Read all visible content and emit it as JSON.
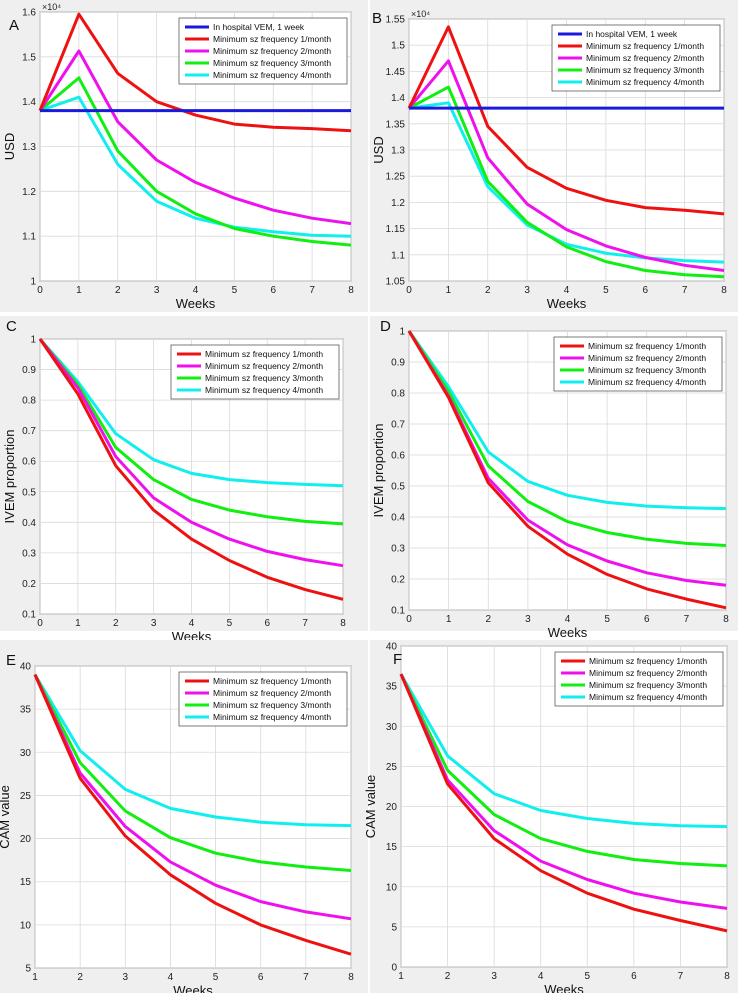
{
  "chart_data": [
    {
      "id": "A",
      "letter": "A",
      "type": "line",
      "ylabel": "USD",
      "xlabel": "Weeks",
      "xlim": [
        0,
        8
      ],
      "ylim": [
        1.0,
        1.6
      ],
      "xticks": [
        0,
        1,
        2,
        3,
        4,
        5,
        6,
        7,
        8
      ],
      "yticks": [
        1,
        1.1,
        1.2,
        1.3,
        1.4,
        1.5,
        1.6
      ],
      "ytick_labels": [
        "1",
        "1.1",
        "1.2",
        "1.3",
        "1.4",
        "1.5",
        "1.6"
      ],
      "exponent_label": "×10⁴",
      "legend_position": "top-right",
      "x": [
        0,
        1,
        2,
        3,
        4,
        5,
        6,
        7,
        8
      ],
      "series": [
        {
          "name": "In hospital VEM, 1 week",
          "color": "#1a1adc",
          "values": [
            1.38,
            1.38,
            1.38,
            1.38,
            1.38,
            1.38,
            1.38,
            1.38,
            1.38
          ]
        },
        {
          "name": "Minimum sz frequency 1/month",
          "color": "#ee1111",
          "values": [
            1.38,
            1.595,
            1.463,
            1.4,
            1.37,
            1.35,
            1.343,
            1.34,
            1.335
          ]
        },
        {
          "name": "Minimum sz frequency 2/month",
          "color": "#ee11ee",
          "values": [
            1.38,
            1.513,
            1.355,
            1.27,
            1.22,
            1.185,
            1.158,
            1.14,
            1.128
          ]
        },
        {
          "name": "Minimum sz frequency 3/month",
          "color": "#11ee11",
          "values": [
            1.38,
            1.453,
            1.29,
            1.2,
            1.15,
            1.117,
            1.1,
            1.088,
            1.08
          ]
        },
        {
          "name": "Minimum sz frequency 4/month",
          "color": "#11eeee",
          "values": [
            1.38,
            1.41,
            1.26,
            1.178,
            1.14,
            1.12,
            1.11,
            1.102,
            1.1
          ]
        }
      ]
    },
    {
      "id": "B",
      "letter": "B",
      "type": "line",
      "ylabel": "USD",
      "xlabel": "Weeks",
      "xlim": [
        0,
        8
      ],
      "ylim": [
        1.05,
        1.55
      ],
      "xticks": [
        0,
        1,
        2,
        3,
        4,
        5,
        6,
        7,
        8
      ],
      "yticks": [
        1.05,
        1.1,
        1.15,
        1.2,
        1.25,
        1.3,
        1.35,
        1.4,
        1.45,
        1.5,
        1.55
      ],
      "ytick_labels": [
        "1.05",
        "1.1",
        "1.15",
        "1.2",
        "1.25",
        "1.3",
        "1.35",
        "1.4",
        "1.45",
        "1.5",
        "1.55"
      ],
      "exponent_label": "×10⁴",
      "legend_position": "top-right",
      "x": [
        0,
        1,
        2,
        3,
        4,
        5,
        6,
        7,
        8
      ],
      "series": [
        {
          "name": "In hospital VEM, 1 week",
          "color": "#1a1adc",
          "values": [
            1.38,
            1.38,
            1.38,
            1.38,
            1.38,
            1.38,
            1.38,
            1.38,
            1.38
          ]
        },
        {
          "name": "Minimum sz frequency 1/month",
          "color": "#ee1111",
          "values": [
            1.38,
            1.535,
            1.345,
            1.267,
            1.227,
            1.204,
            1.19,
            1.185,
            1.178
          ]
        },
        {
          "name": "Minimum sz frequency 2/month",
          "color": "#ee11ee",
          "values": [
            1.38,
            1.47,
            1.285,
            1.197,
            1.148,
            1.117,
            1.095,
            1.08,
            1.07
          ]
        },
        {
          "name": "Minimum sz frequency 3/month",
          "color": "#11ee11",
          "values": [
            1.38,
            1.42,
            1.24,
            1.162,
            1.115,
            1.087,
            1.07,
            1.062,
            1.058
          ]
        },
        {
          "name": "Minimum sz frequency 4/month",
          "color": "#11eeee",
          "values": [
            1.38,
            1.39,
            1.23,
            1.157,
            1.12,
            1.103,
            1.094,
            1.089,
            1.086
          ]
        }
      ]
    },
    {
      "id": "C",
      "letter": "C",
      "type": "line",
      "ylabel": "IVEM proportion",
      "xlabel": "Weeks",
      "xlim": [
        0,
        8
      ],
      "ylim": [
        0.1,
        1.0
      ],
      "xticks": [
        0,
        1,
        2,
        3,
        4,
        5,
        6,
        7,
        8
      ],
      "yticks": [
        0.1,
        0.2,
        0.3,
        0.4,
        0.5,
        0.6,
        0.7,
        0.8,
        0.9,
        1
      ],
      "ytick_labels": [
        "0.1",
        "0.2",
        "0.3",
        "0.4",
        "0.5",
        "0.6",
        "0.7",
        "0.8",
        "0.9",
        "1"
      ],
      "legend_position": "top-right",
      "x": [
        0,
        1,
        2,
        3,
        4,
        5,
        6,
        7,
        8
      ],
      "series": [
        {
          "name": "Minimum sz frequency 1/month",
          "color": "#ee1111",
          "values": [
            1.0,
            0.82,
            0.585,
            0.44,
            0.345,
            0.275,
            0.22,
            0.18,
            0.148
          ]
        },
        {
          "name": "Minimum sz frequency 2/month",
          "color": "#ee11ee",
          "values": [
            1.0,
            0.84,
            0.615,
            0.48,
            0.4,
            0.345,
            0.305,
            0.278,
            0.258
          ]
        },
        {
          "name": "Minimum sz frequency 3/month",
          "color": "#11ee11",
          "values": [
            1.0,
            0.85,
            0.645,
            0.54,
            0.475,
            0.44,
            0.418,
            0.403,
            0.395
          ]
        },
        {
          "name": "Minimum sz frequency 4/month",
          "color": "#11eeee",
          "values": [
            1.0,
            0.86,
            0.69,
            0.605,
            0.56,
            0.54,
            0.53,
            0.524,
            0.52
          ]
        }
      ]
    },
    {
      "id": "D",
      "letter": "D",
      "type": "line",
      "ylabel": "IVEM proportion",
      "xlabel": "Weeks",
      "xlim": [
        0,
        8
      ],
      "ylim": [
        0.1,
        1.0
      ],
      "xticks": [
        0,
        1,
        2,
        3,
        4,
        5,
        6,
        7,
        8
      ],
      "yticks": [
        0.1,
        0.2,
        0.3,
        0.4,
        0.5,
        0.6,
        0.7,
        0.8,
        0.9,
        1
      ],
      "ytick_labels": [
        "0.1",
        "0.2",
        "0.3",
        "0.4",
        "0.5",
        "0.6",
        "0.7",
        "0.8",
        "0.9",
        "1"
      ],
      "legend_position": "top-right",
      "x": [
        0,
        1,
        2,
        3,
        4,
        5,
        6,
        7,
        8
      ],
      "series": [
        {
          "name": "Minimum sz frequency 1/month",
          "color": "#ee1111",
          "values": [
            1.0,
            0.785,
            0.51,
            0.37,
            0.28,
            0.215,
            0.168,
            0.135,
            0.107
          ]
        },
        {
          "name": "Minimum sz frequency 2/month",
          "color": "#ee11ee",
          "values": [
            1.0,
            0.79,
            0.525,
            0.39,
            0.31,
            0.258,
            0.22,
            0.195,
            0.18
          ]
        },
        {
          "name": "Minimum sz frequency 3/month",
          "color": "#11ee11",
          "values": [
            1.0,
            0.805,
            0.565,
            0.45,
            0.385,
            0.35,
            0.328,
            0.315,
            0.308
          ]
        },
        {
          "name": "Minimum sz frequency 4/month",
          "color": "#11eeee",
          "values": [
            1.0,
            0.82,
            0.61,
            0.515,
            0.47,
            0.447,
            0.435,
            0.43,
            0.427
          ]
        }
      ]
    },
    {
      "id": "E",
      "letter": "E",
      "type": "line",
      "ylabel": "CAM value",
      "xlabel": "Weeks",
      "xlim": [
        1,
        8
      ],
      "ylim": [
        5,
        40
      ],
      "xticks": [
        1,
        2,
        3,
        4,
        5,
        6,
        7,
        8
      ],
      "yticks": [
        5,
        10,
        15,
        20,
        25,
        30,
        35,
        40
      ],
      "ytick_labels": [
        "5",
        "10",
        "15",
        "20",
        "25",
        "30",
        "35",
        "40"
      ],
      "legend_position": "top-right",
      "x": [
        1,
        2,
        3,
        4,
        5,
        6,
        7,
        8
      ],
      "series": [
        {
          "name": "Minimum sz frequency 1/month",
          "color": "#ee1111",
          "values": [
            39,
            27,
            20.3,
            15.8,
            12.5,
            10,
            8.2,
            6.6
          ]
        },
        {
          "name": "Minimum sz frequency 2/month",
          "color": "#ee11ee",
          "values": [
            39,
            27.6,
            21.4,
            17.3,
            14.6,
            12.7,
            11.5,
            10.7
          ]
        },
        {
          "name": "Minimum sz frequency 3/month",
          "color": "#11ee11",
          "values": [
            39,
            28.8,
            23.2,
            20.1,
            18.3,
            17.3,
            16.7,
            16.3
          ]
        },
        {
          "name": "Minimum sz frequency 4/month",
          "color": "#11eeee",
          "values": [
            39,
            30.2,
            25.7,
            23.5,
            22.5,
            21.9,
            21.6,
            21.5
          ]
        }
      ]
    },
    {
      "id": "F",
      "letter": "F",
      "type": "line",
      "ylabel": "CAM value",
      "xlabel": "Weeks",
      "xlim": [
        1,
        8
      ],
      "ylim": [
        0,
        40
      ],
      "xticks": [
        1,
        2,
        3,
        4,
        5,
        6,
        7,
        8
      ],
      "yticks": [
        0,
        5,
        10,
        15,
        20,
        25,
        30,
        35,
        40
      ],
      "ytick_labels": [
        "0",
        "5",
        "10",
        "15",
        "20",
        "25",
        "30",
        "35",
        "40"
      ],
      "legend_position": "top-right",
      "x": [
        1,
        2,
        3,
        4,
        5,
        6,
        7,
        8
      ],
      "series": [
        {
          "name": "Minimum sz frequency 1/month",
          "color": "#ee1111",
          "values": [
            36.5,
            22.8,
            16,
            12,
            9.2,
            7.2,
            5.8,
            4.5
          ]
        },
        {
          "name": "Minimum sz frequency 2/month",
          "color": "#ee11ee",
          "values": [
            36.5,
            23.3,
            17,
            13.2,
            10.9,
            9.2,
            8.1,
            7.3
          ]
        },
        {
          "name": "Minimum sz frequency 3/month",
          "color": "#11ee11",
          "values": [
            36.5,
            24.5,
            19,
            16,
            14.4,
            13.4,
            12.9,
            12.6
          ]
        },
        {
          "name": "Minimum sz frequency 4/month",
          "color": "#11eeee",
          "values": [
            36.5,
            26.3,
            21.6,
            19.5,
            18.5,
            17.9,
            17.6,
            17.5
          ]
        }
      ]
    }
  ]
}
